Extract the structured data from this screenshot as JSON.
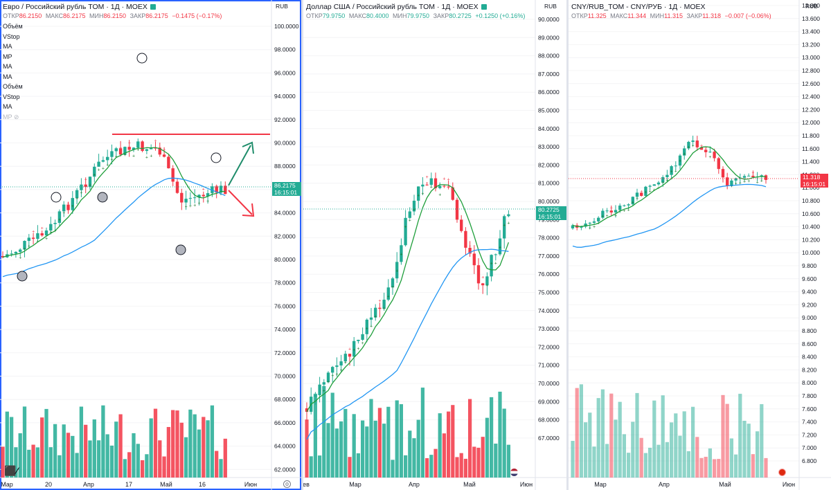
{
  "colors": {
    "up": "#22ab94",
    "down": "#f23645",
    "ma_fast": "#1e9e3a",
    "ma_slow": "#2196f3",
    "vstop": "#1b7a2b",
    "pane_active": "#2962ff"
  },
  "panes": [
    {
      "currency": "RUB",
      "symbol": "Евро / Российский рубль TOM · 1Д · MOEX",
      "ohlc": {
        "o_label": "ОТКР",
        "o": "86.2150",
        "h_label": "МАКС",
        "h": "86.2175",
        "l_label": "МИН",
        "l": "86.2150",
        "c_label": "ЗАКР",
        "c": "86.2175",
        "change": "−0.1475 (−0.17%)"
      },
      "legend": [
        "Объём",
        "VStop",
        "MA",
        "MP",
        "MA",
        "MA",
        "Объём",
        "VStop",
        "MA",
        "MP"
      ],
      "y_ticks": [
        "100.0000",
        "98.0000",
        "96.0000",
        "94.0000",
        "92.0000",
        "90.0000",
        "88.0000",
        "86.0000",
        "84.0000",
        "82.0000",
        "80.0000",
        "78.0000",
        "76.0000",
        "74.0000",
        "72.0000",
        "70.0000",
        "68.0000",
        "66.0000",
        "64.0000",
        "62.0000"
      ],
      "x_ticks": [
        "Мар",
        "20",
        "Апр",
        "17",
        "Май",
        "16",
        "Июн"
      ],
      "last_price": "86.2175",
      "last_time": "16:15:01",
      "logo_icon": "tradingview-logo-icon",
      "axis_icon": "settings-icon"
    },
    {
      "currency": "RUB",
      "symbol": "Доллар США / Российский рубль TOM · 1Д · MOEX",
      "ohlc": {
        "o_label": "ОТКР",
        "o": "79.9750",
        "h_label": "МАКС",
        "h": "80.4000",
        "l_label": "МИН",
        "l": "79.9750",
        "c_label": "ЗАКР",
        "c": "80.2725",
        "change": "+0.1250 (+0.16%)"
      },
      "y_ticks": [
        "90.0000",
        "89.0000",
        "88.0000",
        "87.0000",
        "86.0000",
        "85.0000",
        "84.0000",
        "83.0000",
        "82.0000",
        "81.0000",
        "80.0000",
        "79.0000",
        "78.0000",
        "77.0000",
        "76.0000",
        "75.0000",
        "74.0000",
        "73.0000",
        "72.0000",
        "71.0000",
        "70.0000",
        "69.0000",
        "68.0000",
        "67.0000"
      ],
      "x_ticks": [
        "ев",
        "Мар",
        "Апр",
        "Май",
        "Июн"
      ],
      "last_price": "80.2725",
      "last_time": "16:15:01",
      "axis_icon": "us-flag-icon"
    },
    {
      "currency": "RUB",
      "symbol": "CNY/RUB_TOM - CNY/РУБ · 1Д · MOEX",
      "ohlc": {
        "o_label": "ОТКР",
        "o": "11.325",
        "h_label": "МАКС",
        "h": "11.344",
        "l_label": "МИН",
        "l": "11.315",
        "c_label": "ЗАКР",
        "c": "11.318",
        "change": "−0.007 (−0.06%)"
      },
      "y_ticks": [
        "13.800",
        "13.600",
        "13.400",
        "13.200",
        "13.000",
        "12.800",
        "12.600",
        "12.400",
        "12.200",
        "12.000",
        "11.800",
        "11.600",
        "11.400",
        "11.200",
        "11.000",
        "10.800",
        "10.600",
        "10.400",
        "10.200",
        "10.000",
        "9.800",
        "9.600",
        "9.400",
        "9.200",
        "9.000",
        "8.800",
        "8.600",
        "8.400",
        "8.200",
        "8.000",
        "7.800",
        "7.600",
        "7.400",
        "7.200",
        "7.000",
        "6.800"
      ],
      "x_ticks": [
        "Мар",
        "Апр",
        "Май",
        "Июн"
      ],
      "last_price": "11.318",
      "last_time": "16:15:01",
      "axis_icon": "cn-flag-icon"
    }
  ]
}
